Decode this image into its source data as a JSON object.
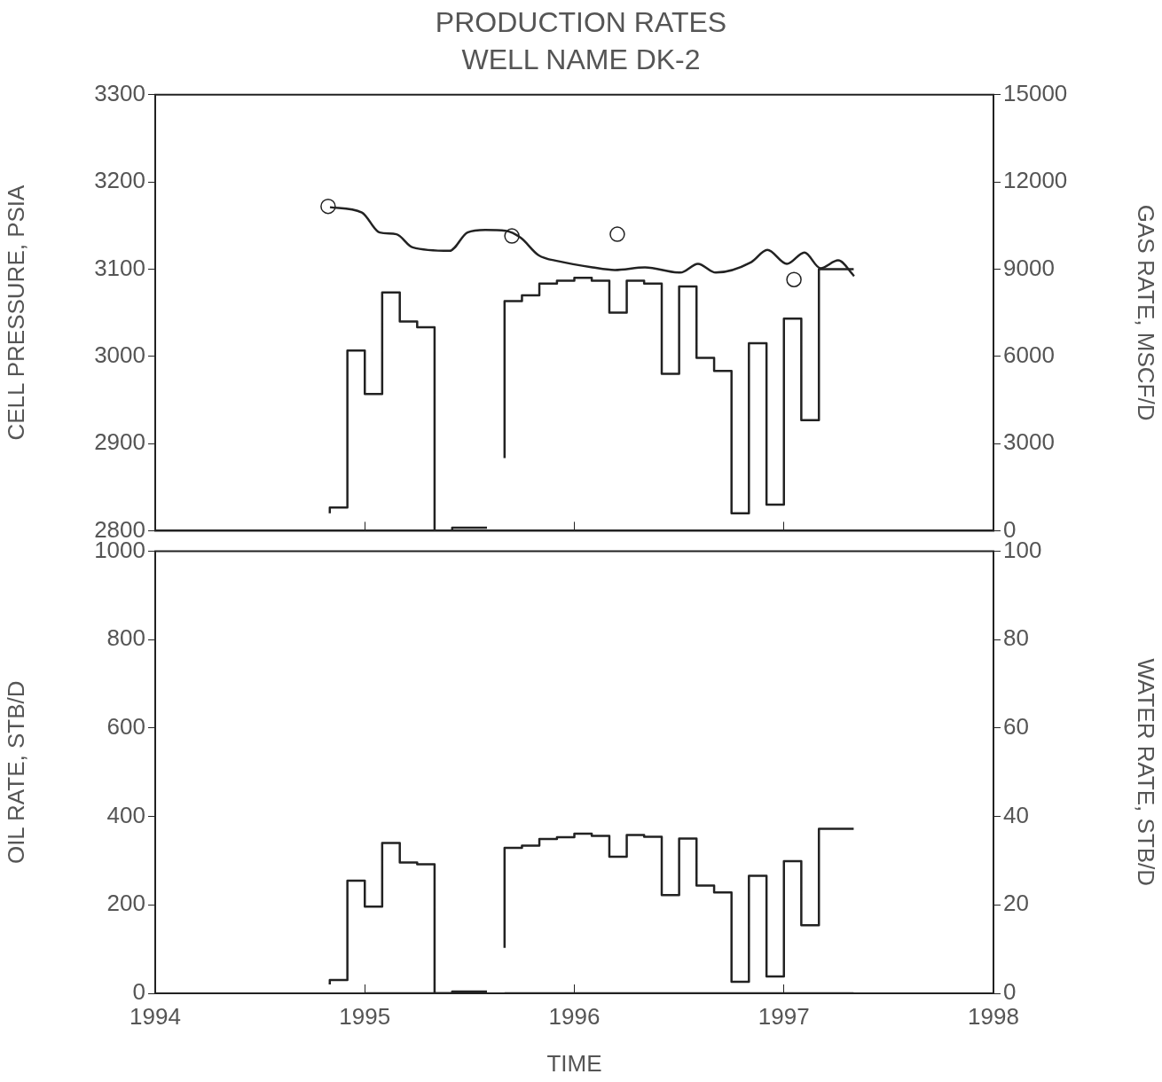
{
  "chart_data": [
    {
      "type": "line",
      "title": "PRODUCTION RATES",
      "subtitle": "WELL NAME DK-2",
      "ylabel": "CELL PRESSURE, PSIA",
      "y2label": "GAS RATE, MSCF/D",
      "xlim": [
        1994,
        1998
      ],
      "xticks": [
        1994,
        1995,
        1996,
        1997,
        1998
      ],
      "ylim": [
        2800,
        3300
      ],
      "yticks": [
        2800,
        2900,
        3000,
        3100,
        3200,
        3300
      ],
      "y2lim": [
        0,
        15000
      ],
      "y2ticks": [
        0,
        3000,
        6000,
        9000,
        12000,
        15000
      ],
      "tick_labels": "y",
      "grid": false,
      "legend": false,
      "series": [
        {
          "axis": "y",
          "color": "#222222",
          "x": [
            1994.834,
            1994.986,
            1995.071,
            1995.151,
            1995.228,
            1995.405,
            1995.49,
            1995.575,
            1995.672,
            1995.744,
            1995.829,
            1995.926,
            1996.087,
            1996.193,
            1996.337,
            1996.506,
            1996.59,
            1996.675,
            1996.844,
            1996.921,
            1997.014,
            1997.098,
            1997.175,
            1997.259,
            1997.335
          ],
          "values": [
            3171,
            3165,
            3142,
            3140,
            3125,
            3121,
            3142,
            3145,
            3144,
            3136,
            3116,
            3109,
            3102,
            3099,
            3102,
            3096,
            3106,
            3096,
            3108,
            3122,
            3106,
            3119,
            3101,
            3110,
            3092
          ]
        },
        {
          "type": "scatter",
          "axis": "y",
          "marker": "circle",
          "color": "#222222",
          "x": [
            1994.825,
            1995.702,
            1996.205,
            1997.048
          ],
          "values": [
            3172,
            3138,
            3140,
            3088
          ]
        },
        {
          "type": "step",
          "axis": "y2",
          "color": "#222222",
          "x": [
            1994.833,
            1994.917,
            1995.0,
            1995.083,
            1995.167,
            1995.25,
            1995.333,
            1995.417,
            1995.5,
            1995.583,
            1995.625,
            1995.667,
            1995.75,
            1995.833,
            1995.917,
            1996.0,
            1996.083,
            1996.167,
            1996.25,
            1996.333,
            1996.417,
            1996.5,
            1996.583,
            1996.667,
            1996.75,
            1996.833,
            1996.917,
            1997.0,
            1997.083,
            1997.167,
            1997.25,
            1997.333
          ],
          "values": [
            600,
            800,
            6200,
            4700,
            8200,
            7200,
            7000,
            0,
            100,
            100,
            null,
            2500,
            7900,
            8100,
            8500,
            8600,
            8700,
            8600,
            7500,
            8600,
            8500,
            5400,
            8400,
            5950,
            5500,
            600,
            6450,
            900,
            7300,
            3800,
            9000,
            9000
          ]
        }
      ]
    },
    {
      "type": "step",
      "xlabel": "TIME",
      "ylabel": "OIL RATE, STB/D",
      "y2label": "WATER RATE, STB/D",
      "xlim": [
        1994,
        1998
      ],
      "xticks": [
        1994,
        1995,
        1996,
        1997,
        1998
      ],
      "ylim": [
        0,
        1000
      ],
      "yticks": [
        0,
        200,
        400,
        600,
        800,
        1000
      ],
      "y2lim": [
        0,
        100
      ],
      "y2ticks": [
        0,
        20,
        40,
        60,
        80,
        100
      ],
      "grid": false,
      "legend": false,
      "series": [
        {
          "axis": "y",
          "color": "#222222",
          "x": [
            1994.833,
            1994.917,
            1995.0,
            1995.083,
            1995.167,
            1995.25,
            1995.333,
            1995.417,
            1995.5,
            1995.583,
            1995.625,
            1995.667,
            1995.75,
            1995.833,
            1995.917,
            1996.0,
            1996.083,
            1996.167,
            1996.25,
            1996.333,
            1996.417,
            1996.5,
            1996.583,
            1996.667,
            1996.75,
            1996.833,
            1996.917,
            1997.0,
            1997.083,
            1997.167,
            1997.25,
            1997.333
          ],
          "values": [
            20,
            30,
            255,
            196,
            340,
            296,
            292,
            0,
            4,
            4,
            null,
            103,
            329,
            334,
            349,
            353,
            361,
            356,
            309,
            358,
            354,
            222,
            350,
            244,
            228,
            26,
            266,
            38,
            299,
            154,
            372,
            372
          ]
        },
        {
          "axis": "y2",
          "color": "#222222",
          "x": [
            1995.0,
            1995.583,
            1995.625,
            1995.667,
            1997.333
          ],
          "values": [
            0,
            0,
            null,
            0,
            0
          ]
        }
      ]
    }
  ]
}
